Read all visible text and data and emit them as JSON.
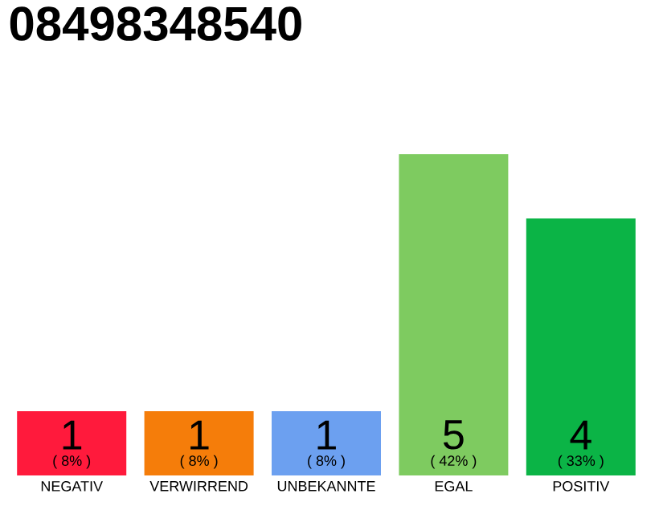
{
  "chart_data": {
    "type": "bar",
    "title": "08498348540",
    "categories": [
      "NEGATIV",
      "VERWIRREND",
      "UNBEKANNTE",
      "EGAL",
      "POSITIV"
    ],
    "values": [
      1,
      1,
      1,
      5,
      4
    ],
    "colors": [
      "#ff1a3c",
      "#f57d0a",
      "#6ca0f0",
      "#7ecb60",
      "#0bb446"
    ],
    "tick_labels": "x",
    "data_labels": true,
    "annotations": [
      "( 8% )",
      "( 8% )",
      "( 8% )",
      "( 42% )",
      "( 33% )"
    ]
  }
}
